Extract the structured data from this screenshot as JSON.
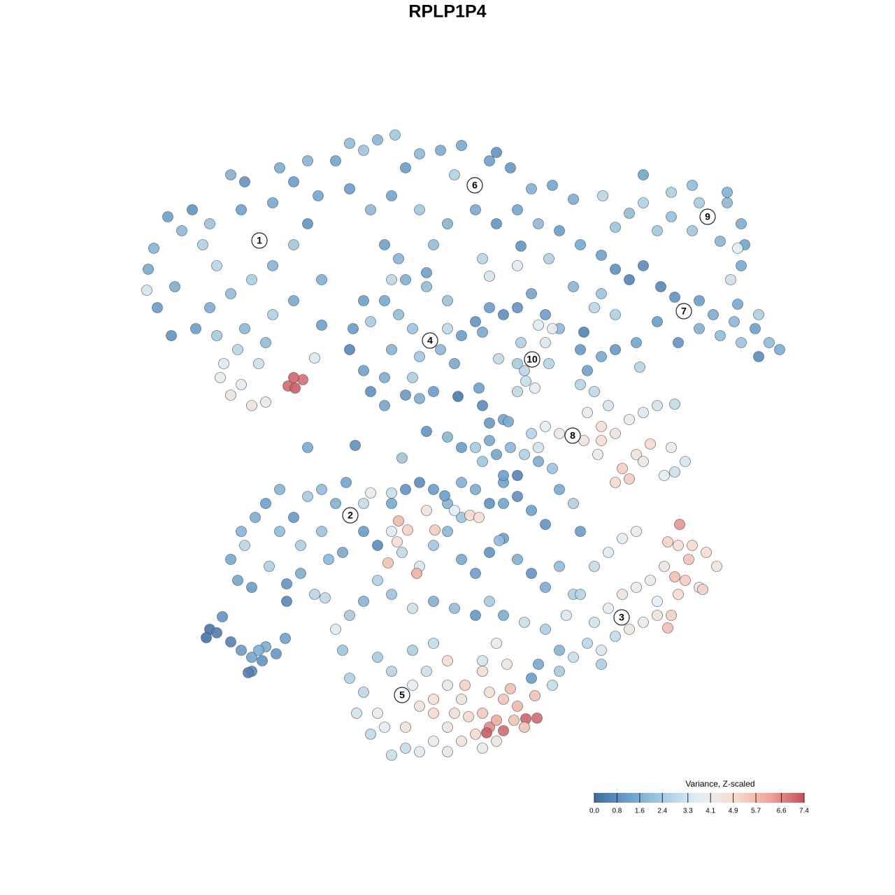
{
  "chart_data": {
    "type": "scatter",
    "title": "RPLP1P4",
    "xlim": [
      0,
      128
    ],
    "ylim": [
      128,
      0
    ],
    "x": [
      22,
      21.2,
      21,
      22.5,
      24.5,
      24,
      26,
      27.5,
      29,
      30,
      31,
      33,
      35,
      34.5,
      37,
      39,
      40,
      42,
      44,
      45.5,
      44,
      42,
      39,
      36,
      33,
      30,
      28,
      31,
      35,
      39,
      42,
      46,
      34,
      37,
      38,
      32,
      31.5,
      33,
      36,
      38,
      34.5,
      41.2,
      42.2,
      43.3,
      42,
      45,
      46,
      25,
      48,
      50,
      52,
      54,
      56.5,
      58,
      60,
      63,
      65,
      67.9,
      70,
      73,
      76,
      79,
      82,
      50,
      53,
      56,
      60,
      64,
      68,
      71,
      74,
      77,
      80,
      83,
      55,
      62,
      69,
      70,
      74.5,
      78.5,
      61,
      57,
      74,
      66,
      71,
      86.2,
      88,
      90,
      92,
      94,
      96,
      99,
      101.2,
      104,
      106,
      106.5,
      103,
      99,
      96,
      104.5,
      106,
      105.5,
      92,
      104,
      100,
      86,
      88,
      90,
      92,
      94.5,
      96.5,
      97.8,
      100,
      102,
      105,
      108,
      110,
      111.5,
      108.5,
      106,
      103,
      100,
      94,
      97,
      91,
      88,
      86,
      84,
      83,
      83.5,
      80,
      78,
      76,
      74,
      72,
      70,
      68,
      69,
      82,
      85,
      88,
      91.5,
      86,
      105.5,
      108.5,
      50.5,
      50,
      52,
      53,
      55,
      58,
      60,
      62,
      61.5,
      59,
      57,
      55,
      53,
      56,
      60,
      63,
      65,
      66,
      64,
      61,
      58,
      56,
      52,
      55,
      59,
      64,
      65.5,
      68.5,
      69,
      70,
      72,
      74,
      74.5,
      76.1,
      78,
      79,
      77,
      75,
      76.5,
      74,
      71.3,
      78.5,
      75.2,
      83,
      85,
      87,
      84,
      81.9,
      80,
      78,
      77,
      86,
      88,
      90,
      92,
      94,
      96.5,
      96,
      98,
      93,
      91,
      89,
      90,
      88,
      92,
      95,
      96.5,
      86,
      83.5,
      85.5,
      44,
      50.8,
      57.5,
      61,
      64,
      66,
      72.7,
      33,
      35,
      34.5,
      36.5,
      38,
      40,
      42,
      44,
      46,
      48,
      50,
      49.5,
      52,
      54,
      34,
      36,
      38.5,
      41,
      41,
      43,
      45,
      47,
      49,
      43,
      46,
      40,
      52,
      46.5,
      56,
      58,
      60,
      62,
      64,
      66,
      68,
      70,
      72,
      74,
      76,
      78,
      80,
      82,
      83,
      56,
      57.5,
      60,
      62,
      64,
      66,
      68,
      70,
      72,
      74,
      76,
      78,
      80,
      82,
      54,
      52,
      50,
      56,
      59,
      62,
      65,
      68,
      70,
      72,
      75,
      78,
      80,
      77,
      76,
      79,
      57,
      58.3,
      56.8,
      55.5,
      59.6,
      62.2,
      61,
      67.2,
      68.5,
      65,
      71.4,
      72,
      63.6,
      66,
      69,
      71,
      73,
      75,
      77,
      79,
      74,
      72,
      68,
      70,
      76,
      56,
      53,
      85,
      87,
      89,
      91,
      97.2,
      95.5,
      97,
      99,
      101,
      102.5,
      100,
      98,
      96.5,
      95,
      93,
      91,
      89,
      88.9,
      87,
      85,
      84,
      86,
      88,
      90,
      92,
      94,
      96,
      95.5,
      97,
      94,
      81,
      83,
      80,
      82,
      86,
      100.5,
      98.5,
      48,
      49,
      50,
      52,
      54,
      55,
      57.5,
      56,
      54,
      59,
      62,
      64,
      61,
      59,
      60,
      62,
      64,
      62,
      60,
      58,
      64,
      66,
      68,
      70,
      71,
      72,
      69.6,
      73.5,
      75.2,
      76.8,
      74,
      72,
      70,
      69,
      66.5,
      66,
      69,
      76.5,
      73,
      75,
      67,
      71,
      69,
      65,
      56,
      53,
      51,
      58,
      62,
      64,
      71,
      72.5,
      69,
      30,
      29.5,
      31,
      31.8,
      33,
      34.5,
      36,
      38,
      37.5,
      36,
      35.5,
      39.5,
      40.8,
      37
    ],
    "y": [
      35.5,
      38.5,
      41.5,
      44,
      48,
      31,
      33,
      30,
      35,
      32,
      38,
      25,
      26,
      30,
      34.3,
      29,
      24,
      26,
      23,
      28,
      32,
      35,
      38,
      40,
      42,
      44,
      47,
      48,
      47,
      45,
      43,
      46.5,
      50,
      52,
      49,
      52,
      54,
      56.5,
      58,
      57.5,
      55,
      55.2,
      55.5,
      54.3,
      54,
      51.2,
      40,
      41,
      23,
      20.5,
      21.5,
      20,
      19.3,
      24,
      22,
      21.5,
      25,
      26.5,
      23,
      24,
      27,
      26.5,
      28.5,
      27,
      30,
      28,
      30,
      32,
      30,
      32,
      30,
      32,
      33,
      35,
      35,
      35,
      37,
      39.5,
      35.2,
      37,
      39,
      37,
      38,
      20.8,
      21.8,
      28,
      32.5,
      30.5,
      29,
      33,
      27.5,
      26.5,
      31,
      29,
      32,
      35,
      34.5,
      33,
      31,
      40,
      38,
      35.5,
      25,
      27.5,
      29,
      36.5,
      38.5,
      40,
      38,
      41,
      42.5,
      44.5,
      43,
      45,
      46,
      47,
      49,
      50,
      51,
      49,
      48,
      47,
      46,
      49,
      49,
      50,
      51,
      53,
      50,
      47.5,
      47,
      45,
      42,
      44,
      45,
      44,
      46,
      47.5,
      41,
      44,
      45,
      52.5,
      42,
      43.5,
      45,
      47,
      50,
      53,
      56,
      58,
      56.5,
      57,
      56,
      48.7,
      47,
      45,
      43,
      46,
      50,
      51,
      50,
      52,
      48,
      43,
      41,
      40,
      40,
      43,
      54,
      54,
      47,
      56.7,
      55.5,
      58,
      60.5,
      60,
      56,
      49,
      51.4,
      49,
      47,
      46.5,
      53,
      55.5,
      52,
      51.3,
      52,
      54.5,
      55,
      56,
      58,
      59,
      62.3,
      62,
      61,
      64,
      61,
      62,
      60,
      59,
      58,
      57.8,
      64,
      66,
      63.5,
      65,
      67,
      68.5,
      69,
      66,
      68,
      67.5,
      63,
      63,
      65,
      64,
      63.7,
      65.5,
      61.7,
      62.5,
      64,
      60.3,
      80,
      78,
      76,
      74,
      72,
      76,
      74,
      71,
      70,
      72,
      73.7,
      69,
      76,
      78,
      83,
      84,
      81,
      83.5,
      86,
      82,
      85,
      80,
      79,
      78,
      76,
      70,
      72,
      85.5,
      72,
      70,
      69,
      70,
      72,
      74,
      70,
      72,
      69,
      71,
      73,
      75,
      70,
      72,
      76,
      76,
      79,
      81,
      78,
      76,
      80,
      82,
      79,
      77,
      80,
      82,
      84,
      81,
      85,
      83,
      86,
      88,
      85,
      87,
      86,
      87,
      88,
      86,
      88,
      89,
      90,
      93,
      95,
      97,
      98,
      74.5,
      75.8,
      77.5,
      80.5,
      82,
      75.8,
      73,
      73.7,
      74,
      73,
      77.3,
      72,
      70.9,
      69,
      66,
      65,
      64,
      65,
      66,
      67,
      68,
      68,
      64,
      63,
      62,
      70.5,
      70.5,
      81,
      79,
      77,
      76,
      75,
      77.5,
      78,
      78,
      79,
      81,
      84,
      83,
      82.5,
      81,
      83,
      84,
      85,
      88.3,
      87,
      89,
      92,
      93,
      91,
      90,
      89,
      88,
      88,
      89.8,
      85,
      86,
      88,
      85,
      96,
      94,
      95,
      84.3,
      80,
      90,
      93,
      97,
      99,
      102,
      104,
      99.4,
      96,
      94,
      93,
      92,
      94.5,
      96,
      98,
      101,
      102,
      104,
      106,
      107.5,
      107,
      107.5,
      106,
      105,
      104,
      103,
      104.5,
      104.8,
      103,
      102.8,
      102.7,
      101,
      100,
      99,
      96,
      98,
      100,
      102,
      99.5,
      98.5,
      104,
      102.5,
      106,
      107,
      102,
      108,
      105,
      102,
      104,
      100,
      98,
      92,
      95,
      94.5,
      90,
      91.2,
      90.5,
      88.2,
      91.8,
      93,
      94,
      92.5,
      94.5,
      96,
      96.2,
      93.5,
      91.3,
      93
    ],
    "values": [
      1.8,
      1.5,
      3.4,
      1.2,
      1.0,
      1.3,
      1.9,
      1.0,
      2.6,
      2.2,
      2.8,
      1.7,
      1.0,
      1.3,
      2.0,
      1.5,
      1.6,
      1.2,
      1.8,
      1.4,
      1.0,
      2.3,
      1.8,
      2.5,
      2.0,
      1.6,
      1.2,
      2.4,
      1.9,
      2.6,
      1.5,
      1.3,
      2.8,
      3.2,
      2.0,
      3.6,
      3.9,
      4.4,
      4.6,
      4.2,
      3.8,
      7.0,
      7.2,
      6.9,
      7.1,
      3.5,
      1.7,
      1.6,
      1.4,
      2.0,
      2.2,
      1.8,
      2.3,
      1.2,
      1.9,
      1.6,
      2.6,
      2.8,
      1.3,
      1.1,
      1.7,
      1.4,
      1.6,
      1.2,
      1.9,
      1.4,
      2.3,
      1.8,
      1.5,
      1.0,
      1.4,
      1.9,
      1.2,
      1.5,
      1.3,
      2.0,
      2.8,
      3.4,
      1.0,
      2.6,
      1.3,
      1.8,
      3.6,
      1.5,
      1.0,
      2.8,
      2.2,
      2.0,
      2.6,
      2.3,
      2.5,
      2.0,
      2.7,
      1.9,
      1.6,
      1.4,
      1.8,
      2.3,
      2.1,
      3.2,
      1.5,
      3.7,
      1.4,
      1.7,
      2.4,
      1.3,
      0.9,
      0.6,
      0.8,
      0.7,
      1.0,
      2.4,
      1.2,
      1.6,
      1.9,
      1.3,
      2.0,
      1.6,
      0.8,
      2.2,
      2.0,
      1.7,
      1.2,
      1.0,
      1.4,
      1.1,
      1.5,
      1.3,
      1.1,
      0.6,
      1.9,
      1.2,
      1.4,
      1.0,
      0.9,
      1.2,
      1.0,
      1.5,
      1.8,
      2.8,
      2.5,
      2.7,
      2.2,
      1.5,
      2.5,
      1.2,
      0.7,
      1.3,
      0.9,
      1.4,
      1.1,
      1.6,
      1.2,
      2.6,
      2.2,
      2.0,
      1.5,
      2.4,
      1.8,
      2.3,
      1.9,
      1.5,
      1.2,
      2.2,
      2.0,
      1.7,
      2.8,
      1.3,
      1.6,
      2.5,
      2.9,
      0.4,
      1.3,
      0.8,
      1.1,
      1.4,
      2.9,
      2.6,
      3.2,
      3.5,
      3.9,
      3.6,
      2.8,
      3.8,
      2.4,
      3.0,
      2.7,
      3.1,
      2.7,
      2.9,
      3.4,
      3.9,
      3.5,
      4.2,
      3.7,
      3.3,
      4.8,
      4.4,
      4.0,
      3.6,
      3.3,
      3.0,
      3.8,
      3.4,
      5.0,
      4.6,
      5.2,
      5.3,
      5.0,
      4.1,
      3.7,
      3.2,
      4.9,
      4.6,
      4.0,
      1.5,
      0.9,
      2.2,
      1.0,
      1.8,
      1.2,
      1.5,
      1.5,
      2.8,
      1.8,
      1.6,
      1.3,
      2.0,
      1.1,
      2.4,
      2.0,
      1.7,
      2.3,
      1.4,
      1.2,
      0.8,
      1.4,
      1.2,
      2.6,
      1.0,
      0.7,
      1.6,
      2.8,
      1.9,
      1.5,
      2.5,
      2.2,
      1.8,
      3.0,
      2.9,
      1.5,
      1.0,
      0.8,
      1.2,
      1.8,
      2.2,
      1.6,
      1.0,
      1.4,
      0.9,
      1.3,
      1.0,
      1.5,
      2.5,
      1.2,
      3.6,
      2.9,
      3.4,
      2.3,
      1.9,
      1.5,
      1.2,
      1.0,
      1.3,
      1.7,
      1.0,
      1.6,
      2.0,
      2.6,
      2.6,
      1.8,
      2.4,
      2.2,
      3.2,
      1.7,
      2.0,
      1.1,
      2.4,
      1.6,
      3.1,
      2.5,
      1.8,
      1.5,
      1.2,
      3.0,
      5.7,
      5.2,
      4.8,
      5.5,
      5.9,
      5.3,
      4.6,
      5.0,
      4.9,
      3.8,
      2.0,
      1.4,
      1.2,
      1.7,
      2.3,
      1.4,
      1.9,
      2.6,
      1.6,
      2.2,
      0.6,
      1.2,
      2.4,
      1.5,
      2.7,
      3.1,
      3.8,
      3.0,
      3.6,
      3.8,
      4.0,
      6.4,
      5.2,
      4.8,
      5.0,
      4.8,
      4.5,
      4.2,
      5.3,
      5.6,
      4.4,
      3.8,
      4.0,
      4.5,
      4.1,
      3.9,
      3.3,
      2.8,
      3.5,
      3.0,
      4.3,
      4.0,
      4.5,
      5.2,
      5.6,
      5.0,
      3.7,
      3.5,
      2.7,
      2.4,
      3.1,
      2.5,
      5.2,
      5.5,
      3.6,
      2.2,
      2.6,
      2.8,
      4.0,
      3.8,
      3.4,
      2.7,
      2.4,
      2.5,
      3.0,
      4.9,
      3.2,
      3.8,
      4.6,
      5.0,
      4.5,
      4.0,
      3.6,
      3.0,
      4.2,
      4.6,
      5.0,
      6.5,
      6.0,
      7.0,
      7.2,
      5.5,
      7.1,
      7.0,
      5.7,
      5.4,
      4.8,
      4.9,
      5.2,
      4.5,
      5.4,
      5.5,
      5.6,
      5.5,
      5.0,
      4.3,
      3.9,
      4.7,
      3.1,
      2.9,
      3.3,
      4.6,
      4.8,
      4.2,
      4.0,
      4.3,
      3.4,
      0.3,
      0.2,
      0.5,
      1.0,
      0.6,
      1.2,
      1.4,
      1.6,
      1.0,
      0.8,
      0.5,
      1.1,
      1.3,
      1.7
    ],
    "annotations": [
      {
        "text": "1",
        "x": 37.1,
        "y": 34.4
      },
      {
        "text": "2",
        "x": 50.1,
        "y": 73.7
      },
      {
        "text": "3",
        "x": 88.9,
        "y": 88.3
      },
      {
        "text": "4",
        "x": 61.5,
        "y": 48.7
      },
      {
        "text": "5",
        "x": 57.5,
        "y": 99.4
      },
      {
        "text": "6",
        "x": 67.9,
        "y": 26.5
      },
      {
        "text": "7",
        "x": 97.8,
        "y": 44.5
      },
      {
        "text": "8",
        "x": 81.9,
        "y": 62.3
      },
      {
        "text": "9",
        "x": 101.2,
        "y": 31
      },
      {
        "text": "10",
        "x": 76.1,
        "y": 51.4
      }
    ],
    "colorbar": {
      "title": "Variance, Z-scaled",
      "lim": [
        0,
        7.4
      ],
      "ticks": [
        {
          "value": 0,
          "label": "0.0"
        },
        0.8,
        1.6,
        2.4,
        3.3,
        4.1,
        4.9,
        5.7,
        6.6,
        7.4
      ],
      "colors": [
        "#3f6ca3",
        "#6aa1cd",
        "#a8cfe4",
        "#e3eef5",
        "#f7ddd0",
        "#eea596",
        "#c8505f"
      ]
    }
  }
}
